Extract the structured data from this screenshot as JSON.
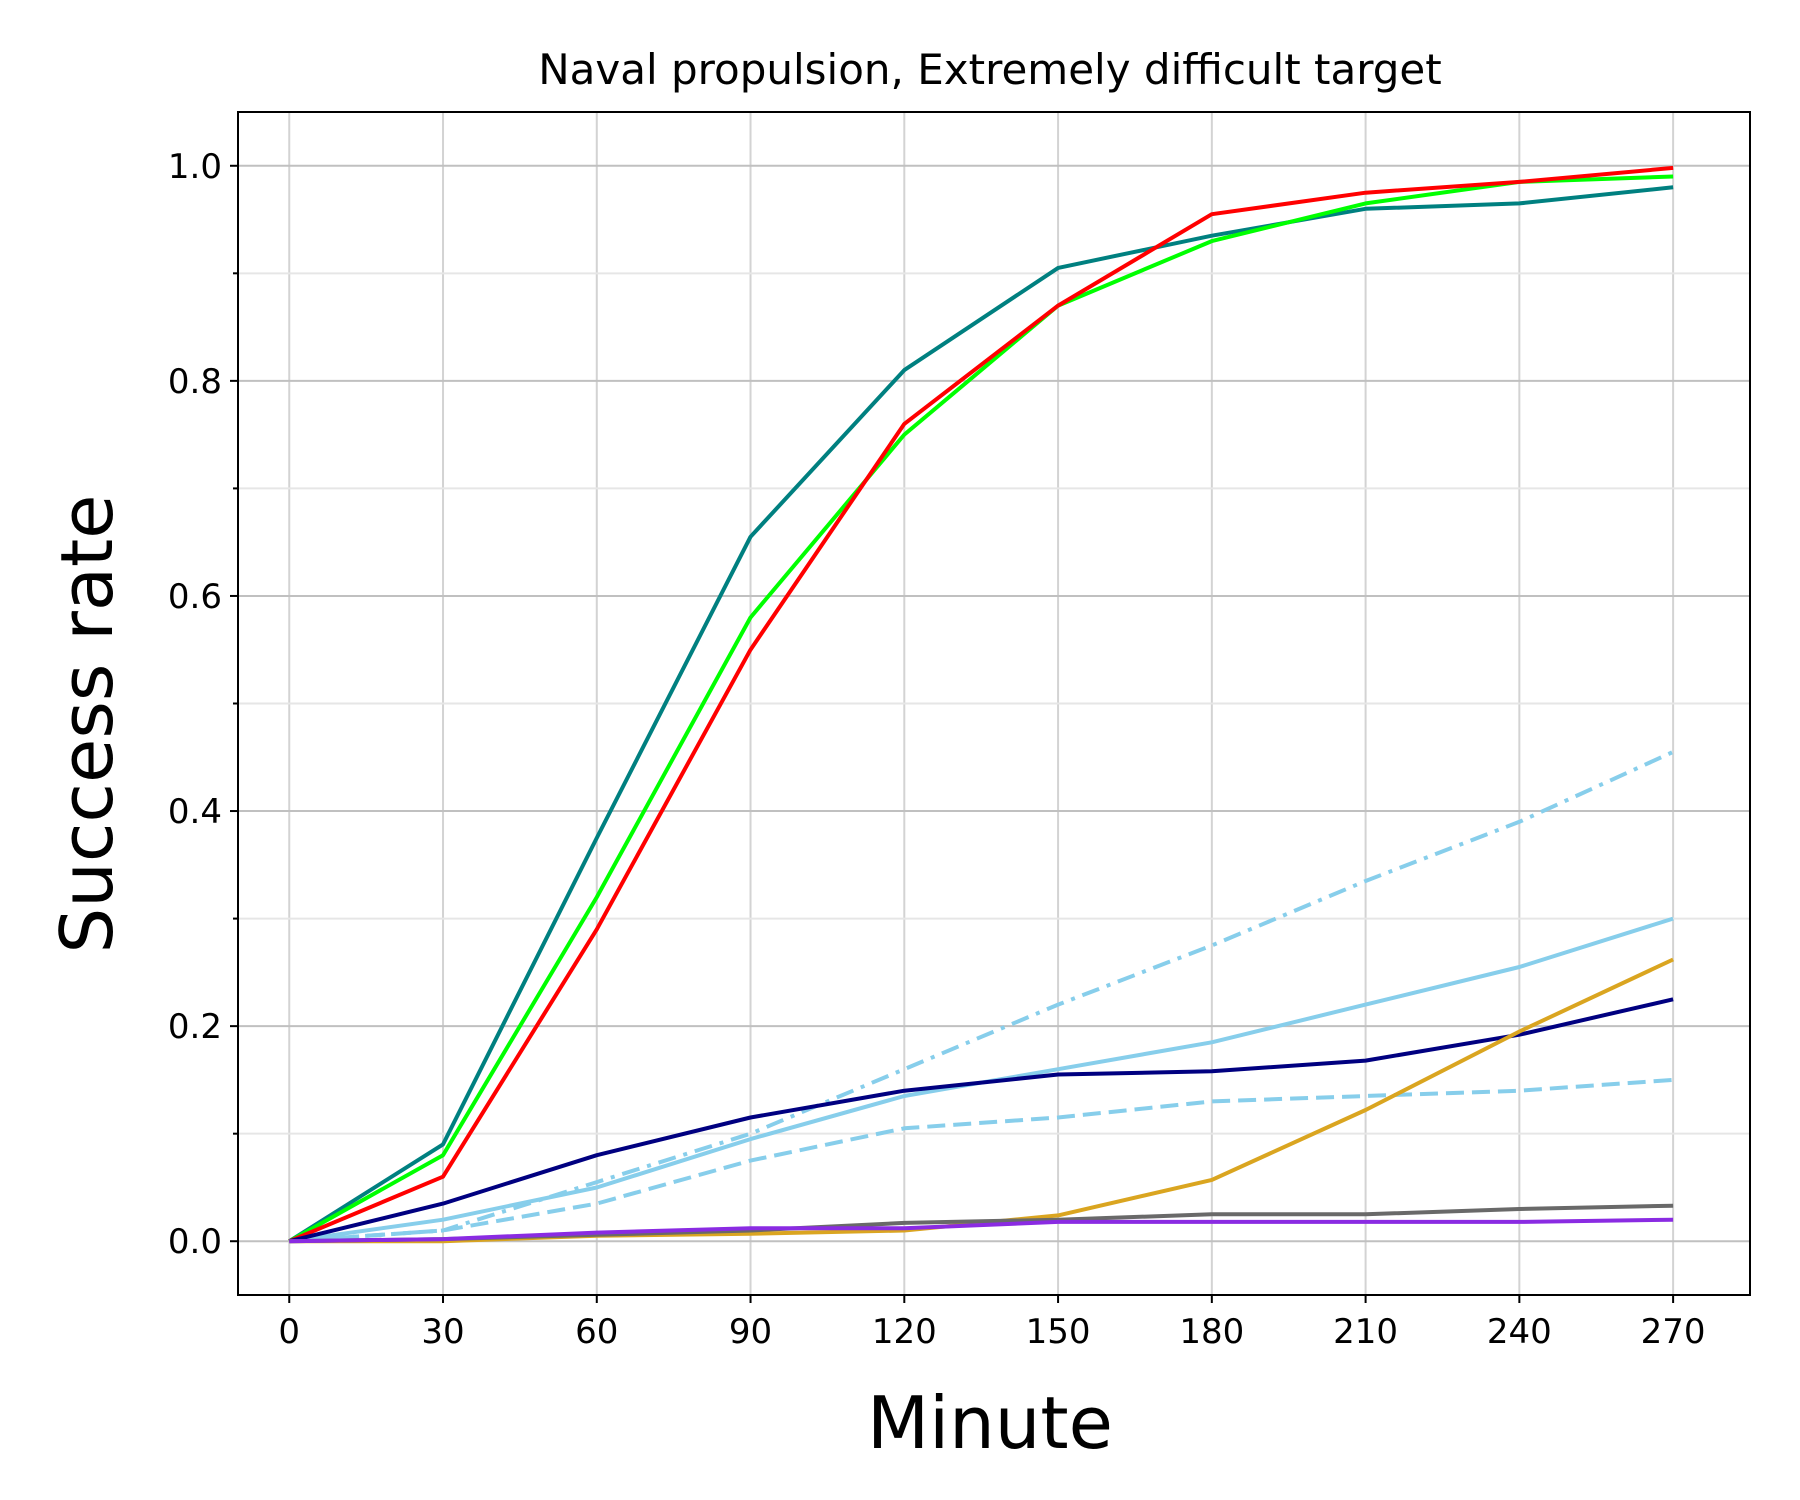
{
  "chart_data": {
    "type": "line",
    "title": "Naval propulsion, Extremely difficult target",
    "xlabel": "Minute",
    "ylabel": "Success rate",
    "xlim": [
      -10,
      285
    ],
    "ylim": [
      -0.05,
      1.05
    ],
    "x_ticks": [
      0,
      30,
      60,
      90,
      120,
      150,
      180,
      210,
      240,
      270
    ],
    "y_ticks": [
      0.0,
      0.2,
      0.4,
      0.6,
      0.8,
      1.0
    ],
    "y_tick_labels": [
      "0.0",
      "0.2",
      "0.4",
      "0.6",
      "0.8",
      "1.0"
    ],
    "y_minor_ticks": [
      0.1,
      0.3,
      0.5,
      0.7,
      0.9
    ],
    "grid": true,
    "legend": "none",
    "x": [
      0,
      30,
      60,
      90,
      120,
      150,
      180,
      210,
      240,
      270
    ],
    "series": [
      {
        "name": "teal",
        "color": "#008080",
        "style": "solid",
        "values": [
          0.0,
          0.09,
          0.375,
          0.655,
          0.81,
          0.905,
          0.935,
          0.96,
          0.965,
          0.98
        ]
      },
      {
        "name": "lime",
        "color": "#00ff00",
        "style": "solid",
        "values": [
          0.0,
          0.08,
          0.32,
          0.58,
          0.75,
          0.87,
          0.93,
          0.965,
          0.985,
          0.99
        ]
      },
      {
        "name": "red",
        "color": "#ff0000",
        "style": "solid",
        "values": [
          0.0,
          0.06,
          0.29,
          0.55,
          0.76,
          0.87,
          0.955,
          0.975,
          0.985,
          0.998
        ]
      },
      {
        "name": "skyblue-dashdot",
        "color": "#87ceeb",
        "style": "dashdot",
        "values": [
          0.0,
          0.01,
          0.055,
          0.1,
          0.16,
          0.22,
          0.275,
          0.335,
          0.39,
          0.455
        ]
      },
      {
        "name": "skyblue-solid",
        "color": "#87ceeb",
        "style": "solid",
        "values": [
          0.0,
          0.02,
          0.05,
          0.095,
          0.135,
          0.16,
          0.185,
          0.22,
          0.255,
          0.3
        ]
      },
      {
        "name": "skyblue-dashed",
        "color": "#87ceeb",
        "style": "dashed",
        "values": [
          0.0,
          0.01,
          0.035,
          0.075,
          0.105,
          0.115,
          0.13,
          0.135,
          0.14,
          0.15
        ]
      },
      {
        "name": "navy",
        "color": "#000080",
        "style": "solid",
        "values": [
          0.0,
          0.035,
          0.08,
          0.115,
          0.14,
          0.155,
          0.158,
          0.168,
          0.192,
          0.225
        ]
      },
      {
        "name": "goldenrod",
        "color": "#daa520",
        "style": "solid",
        "values": [
          0.0,
          0.0,
          0.005,
          0.007,
          0.01,
          0.024,
          0.057,
          0.122,
          0.195,
          0.262
        ]
      },
      {
        "name": "gray",
        "color": "#696969",
        "style": "solid",
        "values": [
          0.0,
          0.002,
          0.006,
          0.01,
          0.017,
          0.02,
          0.025,
          0.025,
          0.03,
          0.033
        ]
      },
      {
        "name": "blueviolet",
        "color": "#8a2be2",
        "style": "solid",
        "values": [
          0.0,
          0.002,
          0.008,
          0.012,
          0.012,
          0.018,
          0.018,
          0.018,
          0.018,
          0.02
        ]
      }
    ]
  }
}
